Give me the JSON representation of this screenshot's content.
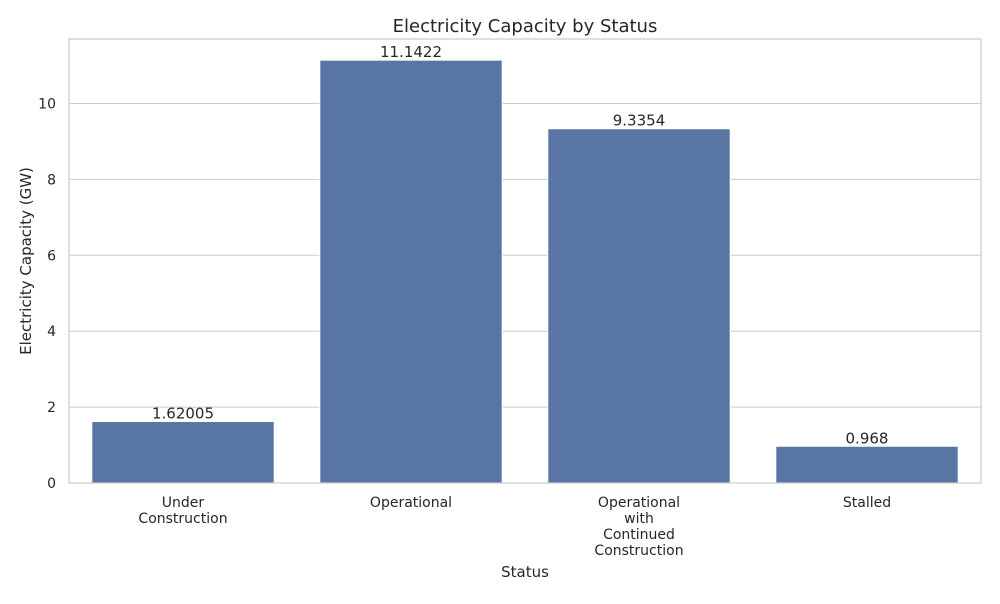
{
  "chart_data": {
    "type": "bar",
    "title": "Electricity Capacity by Status",
    "xlabel": "Status",
    "ylabel": "Electricity Capacity (GW)",
    "categories": [
      [
        "Under",
        "Construction"
      ],
      [
        "Operational"
      ],
      [
        "Operational",
        "with",
        "Continued",
        "Construction"
      ],
      [
        "Stalled"
      ]
    ],
    "values": [
      1.62005,
      11.1422,
      9.3354,
      0.968
    ],
    "value_labels": [
      "1.62005",
      "11.1422",
      "9.3354",
      "0.968"
    ],
    "ylim": [
      0,
      11.7
    ],
    "yticks": [
      0,
      2,
      4,
      6,
      8,
      10
    ],
    "ytick_labels": [
      "0",
      "2",
      "4",
      "6",
      "8",
      "10"
    ],
    "grid": true,
    "colors": {
      "bar": "#5975a4",
      "grid": "#cccccc",
      "text": "#262626"
    }
  }
}
